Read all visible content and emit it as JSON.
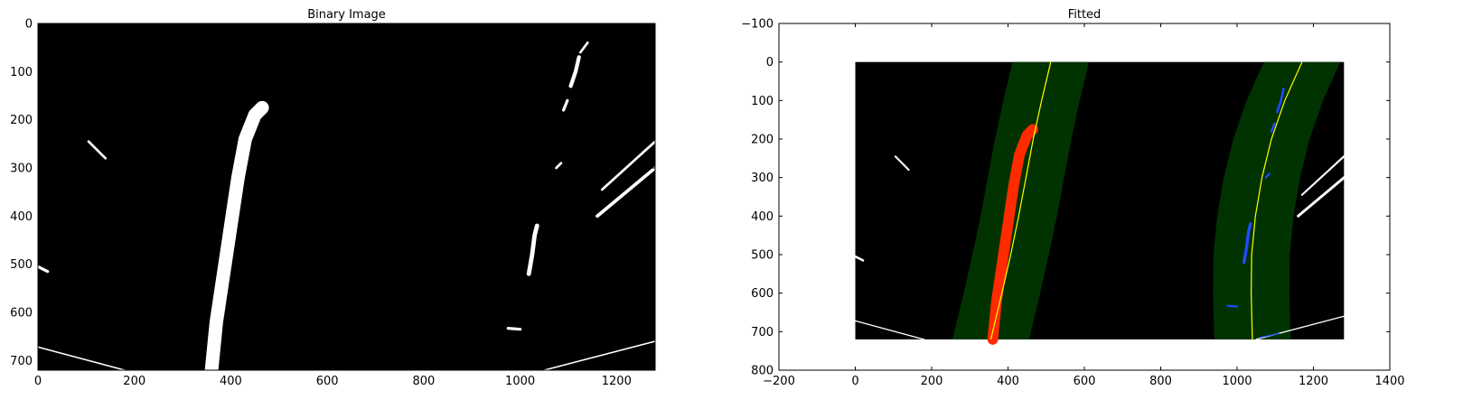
{
  "chart_data": [
    {
      "type": "image",
      "title": "Binary Image",
      "xlim": [
        0,
        1280
      ],
      "ylim": [
        720,
        0
      ],
      "xticks": [
        0,
        200,
        400,
        600,
        800,
        1000,
        1200
      ],
      "yticks": [
        0,
        100,
        200,
        300,
        400,
        500,
        600,
        700
      ],
      "background": "#000000",
      "foreground": "#ffffff",
      "features": [
        {
          "name": "left-lane-line",
          "points": [
            [
              360,
              720
            ],
            [
              370,
              620
            ],
            [
              385,
              520
            ],
            [
              400,
              420
            ],
            [
              415,
              320
            ],
            [
              430,
              240
            ],
            [
              450,
              190
            ],
            [
              465,
              175
            ]
          ],
          "width": 28
        },
        {
          "name": "right-lane-dash-top",
          "points": [
            [
              1105,
              130
            ],
            [
              1115,
              100
            ],
            [
              1122,
              70
            ]
          ],
          "width": 8
        },
        {
          "name": "right-lane-dash-mid",
          "points": [
            [
              1018,
              520
            ],
            [
              1025,
              480
            ],
            [
              1030,
              440
            ],
            [
              1035,
              420
            ]
          ],
          "width": 9
        },
        {
          "name": "right-dash-small",
          "points": [
            [
              1090,
              180
            ],
            [
              1098,
              160
            ]
          ],
          "width": 6
        },
        {
          "name": "right-dash-tiny",
          "points": [
            [
              1075,
              300
            ],
            [
              1085,
              290
            ]
          ],
          "width": 5
        },
        {
          "name": "top-right-tick",
          "points": [
            [
              1125,
              60
            ],
            [
              1140,
              40
            ]
          ],
          "width": 5
        },
        {
          "name": "left-small-mark",
          "points": [
            [
              105,
              245
            ],
            [
              140,
              280
            ]
          ],
          "width": 5
        },
        {
          "name": "right-edge-line-1",
          "points": [
            [
              1170,
              345
            ],
            [
              1280,
              245
            ]
          ],
          "width": 5
        },
        {
          "name": "right-edge-line-2",
          "points": [
            [
              1160,
              400
            ],
            [
              1280,
              300
            ]
          ],
          "width": 7
        },
        {
          "name": "left-edge-mark",
          "points": [
            [
              0,
              505
            ],
            [
              20,
              515
            ]
          ],
          "width": 6
        },
        {
          "name": "bottom-left-line",
          "points": [
            [
              0,
              672
            ],
            [
              180,
              720
            ]
          ],
          "width": 3
        },
        {
          "name": "bottom-right-line",
          "points": [
            [
              1050,
              720
            ],
            [
              1280,
              660
            ]
          ],
          "width": 3
        },
        {
          "name": "small-blob",
          "points": [
            [
              975,
              633
            ],
            [
              1000,
              635
            ]
          ],
          "width": 6
        }
      ]
    },
    {
      "type": "image",
      "title": "Fitted",
      "xlim": [
        -200,
        1400
      ],
      "ylim": [
        800,
        -100
      ],
      "xticks": [
        -200,
        0,
        200,
        400,
        600,
        800,
        1000,
        1200,
        1400
      ],
      "yticks": [
        -100,
        0,
        100,
        200,
        300,
        400,
        500,
        600,
        700,
        800
      ],
      "image_extent": [
        0,
        1280,
        720,
        0
      ],
      "background": "#000000",
      "window_color": "#003300",
      "fit_color": "#ffff00",
      "left_pixels_color": "#ff2a00",
      "right_pixels_color": "#1f4cff",
      "margin": 100,
      "left_fit": [
        [
          0,
          512
        ],
        [
          100,
          488
        ],
        [
          200,
          466
        ],
        [
          300,
          447
        ],
        [
          400,
          428
        ],
        [
          500,
          407
        ],
        [
          600,
          384
        ],
        [
          720,
          355
        ]
      ],
      "right_fit": [
        [
          0,
          1170
        ],
        [
          100,
          1125
        ],
        [
          200,
          1090
        ],
        [
          300,
          1065
        ],
        [
          400,
          1048
        ],
        [
          500,
          1038
        ],
        [
          600,
          1037
        ],
        [
          720,
          1040
        ]
      ],
      "features": [
        {
          "name": "left-small-mark",
          "points": [
            [
              105,
              245
            ],
            [
              140,
              280
            ]
          ],
          "width": 5
        },
        {
          "name": "right-edge-line-1",
          "points": [
            [
              1170,
              345
            ],
            [
              1280,
              245
            ]
          ],
          "width": 5
        },
        {
          "name": "right-edge-line-2",
          "points": [
            [
              1160,
              400
            ],
            [
              1280,
              300
            ]
          ],
          "width": 7
        },
        {
          "name": "left-edge-mark",
          "points": [
            [
              0,
              505
            ],
            [
              20,
              515
            ]
          ],
          "width": 6
        },
        {
          "name": "bottom-left-line",
          "points": [
            [
              0,
              672
            ],
            [
              180,
              720
            ]
          ],
          "width": 3
        },
        {
          "name": "bottom-right-line",
          "points": [
            [
              1050,
              720
            ],
            [
              1280,
              660
            ]
          ],
          "width": 3
        }
      ],
      "left_pixels": {
        "points": [
          [
            360,
            720
          ],
          [
            370,
            620
          ],
          [
            385,
            520
          ],
          [
            400,
            420
          ],
          [
            415,
            320
          ],
          [
            430,
            240
          ],
          [
            450,
            190
          ],
          [
            465,
            175
          ]
        ],
        "width": 28
      },
      "right_pixels": [
        {
          "points": [
            [
              1105,
              130
            ],
            [
              1115,
              100
            ],
            [
              1122,
              70
            ]
          ],
          "width": 6
        },
        {
          "points": [
            [
              1018,
              520
            ],
            [
              1025,
              480
            ],
            [
              1030,
              440
            ],
            [
              1035,
              420
            ]
          ],
          "width": 8
        },
        {
          "points": [
            [
              1090,
              180
            ],
            [
              1098,
              160
            ]
          ],
          "width": 6
        },
        {
          "points": [
            [
              1075,
              300
            ],
            [
              1085,
              290
            ]
          ],
          "width": 5
        },
        {
          "points": [
            [
              975,
              633
            ],
            [
              1000,
              635
            ]
          ],
          "width": 5
        },
        {
          "points": [
            [
              1060,
              715
            ],
            [
              1110,
              705
            ]
          ],
          "width": 3
        }
      ]
    }
  ]
}
